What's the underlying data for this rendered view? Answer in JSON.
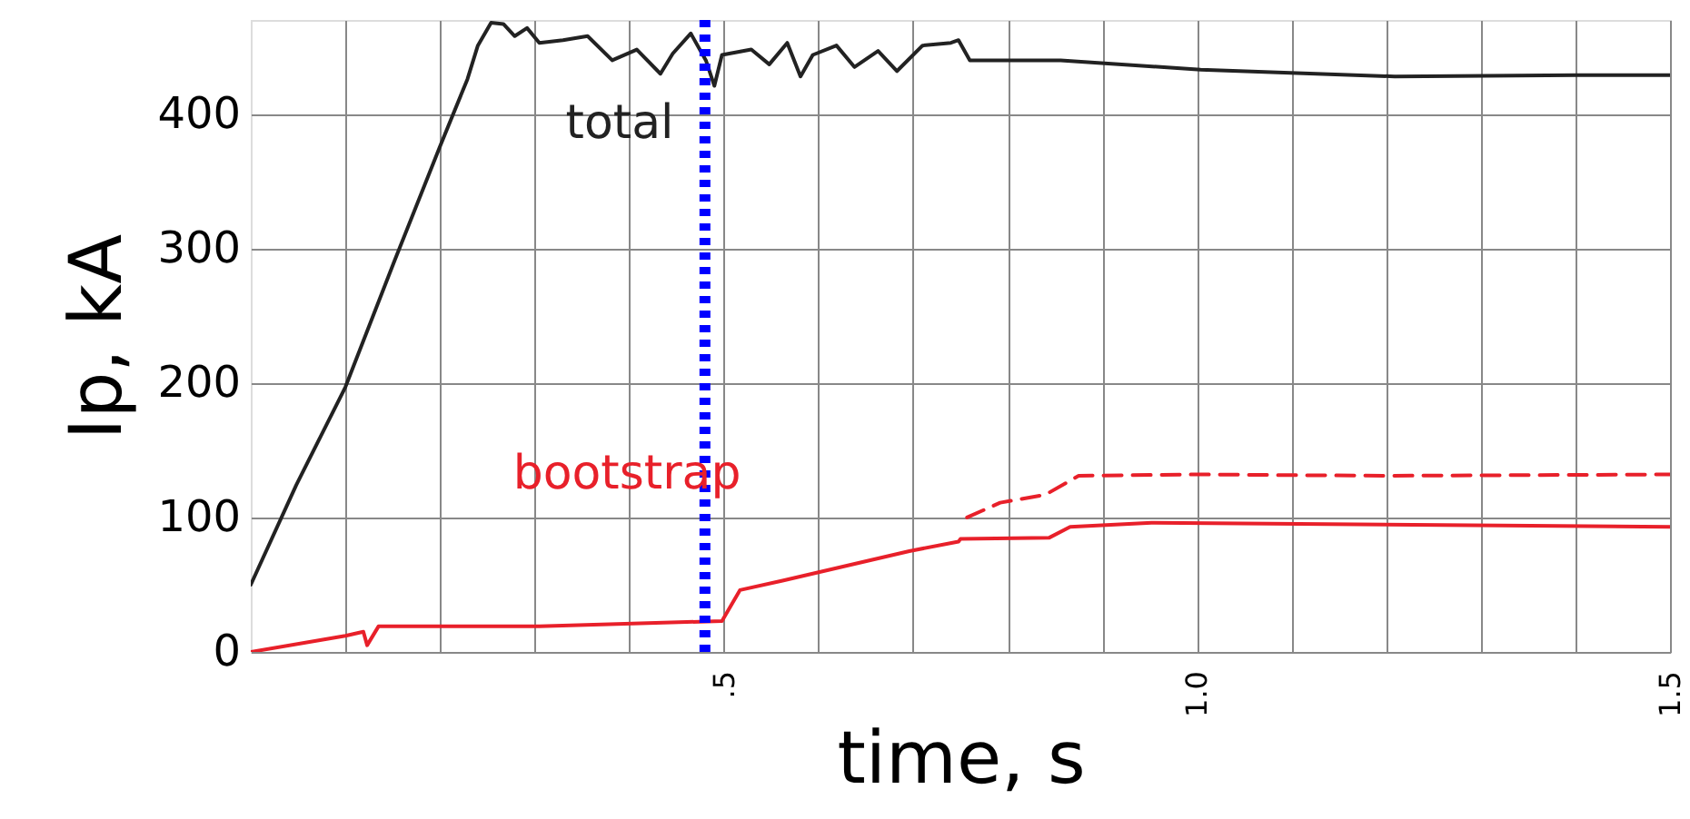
{
  "chart_data": {
    "type": "line",
    "xlabel": "time, s",
    "ylabel": "Ip, kA",
    "xlim": [
      0,
      1.5
    ],
    "ylim": [
      0,
      470
    ],
    "xticks": [
      {
        "value": 0.1,
        "label": null
      },
      {
        "value": 0.2,
        "label": null
      },
      {
        "value": 0.3,
        "label": null
      },
      {
        "value": 0.4,
        "label": null
      },
      {
        "value": 0.5,
        "label": ".5"
      },
      {
        "value": 0.6,
        "label": null
      },
      {
        "value": 0.7,
        "label": null
      },
      {
        "value": 0.8,
        "label": null
      },
      {
        "value": 0.9,
        "label": null
      },
      {
        "value": 1.0,
        "label": "1.0"
      },
      {
        "value": 1.1,
        "label": null
      },
      {
        "value": 1.2,
        "label": null
      },
      {
        "value": 1.3,
        "label": null
      },
      {
        "value": 1.4,
        "label": null
      },
      1.5
    ],
    "yticks": [
      0,
      100,
      200,
      300,
      400
    ],
    "grid": true,
    "marker": "none",
    "series": [
      {
        "color": "#222222",
        "line_style": "solid",
        "x": [
          0,
          0.048,
          0.1,
          0.152,
          0.2,
          0.229,
          0.24,
          0.254,
          0.267,
          0.279,
          0.292,
          0.305,
          0.33,
          0.356,
          0.382,
          0.408,
          0.433,
          0.446,
          0.465,
          0.481,
          0.49,
          0.498,
          0.529,
          0.548,
          0.567,
          0.581,
          0.594,
          0.619,
          0.638,
          0.663,
          0.683,
          0.71,
          0.74,
          0.748,
          0.76,
          0.856,
          1.004,
          1.209,
          1.402,
          1.5
        ],
        "values": [
          50,
          124,
          197,
          291,
          376,
          426,
          451,
          468,
          467,
          458,
          464,
          453,
          455,
          458,
          440,
          448,
          430,
          445,
          460,
          440,
          421,
          444,
          448,
          437,
          453,
          428,
          444,
          451,
          435,
          447,
          432,
          451,
          453,
          455,
          440,
          440,
          433,
          428,
          429,
          429
        ]
      },
      {
        "color": "#e8202a",
        "line_style": "solid",
        "x": [
          0,
          0.1,
          0.119,
          0.123,
          0.135,
          0.305,
          0.498,
          0.517,
          0.562,
          0.696,
          0.748,
          0.75,
          0.844,
          0.866,
          0.952,
          1.5
        ],
        "values": [
          0,
          12,
          15,
          5,
          19,
          19,
          23,
          46,
          53,
          75,
          82,
          84,
          85,
          93,
          96,
          93
        ]
      },
      {
        "color": "#e8202a",
        "line_style": "dashed",
        "x": [
          0.757,
          0.792,
          0.84,
          0.875,
          1.0,
          1.2,
          1.5
        ],
        "values": [
          100,
          111,
          117,
          131,
          132,
          131,
          132
        ]
      }
    ],
    "ref_lines": [
      {
        "axis": "x",
        "value": 0.48,
        "color": "#0000ff",
        "line_style": "dotted"
      }
    ],
    "annotations": [
      "total",
      "bootstrap"
    ]
  }
}
